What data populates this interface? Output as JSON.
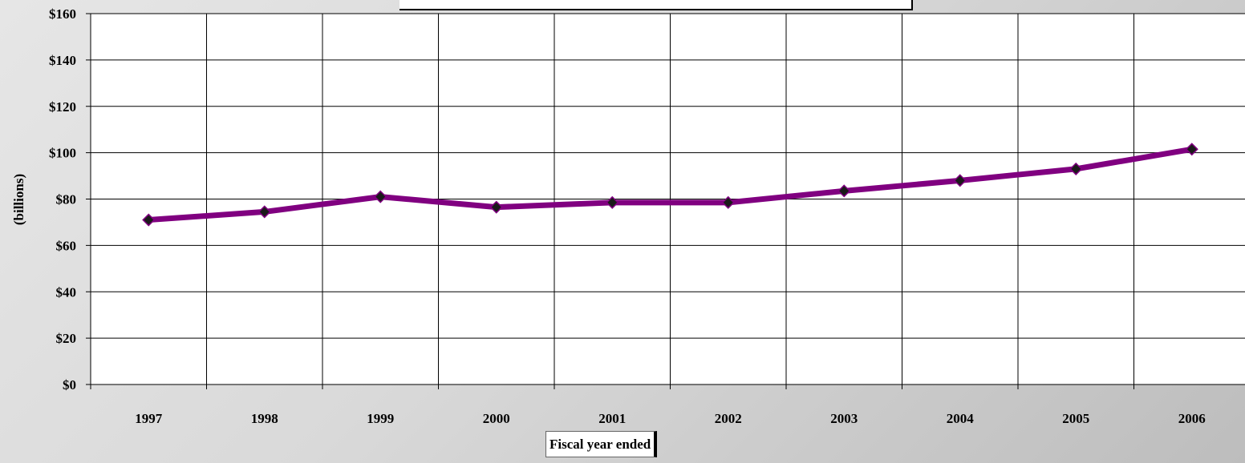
{
  "chart_data": {
    "type": "line",
    "title": "",
    "xlabel": "Fiscal year ended",
    "ylabel": "(billions)",
    "categories": [
      "1997",
      "1998",
      "1999",
      "2000",
      "2001",
      "2002",
      "2003",
      "2004",
      "2005",
      "2006"
    ],
    "series": [
      {
        "values": [
          71,
          74.5,
          81,
          76.5,
          78.5,
          78.5,
          83.5,
          88,
          93,
          101.5
        ]
      }
    ],
    "ylim": [
      0,
      160
    ],
    "ytick_step": 20,
    "ytick_labels": [
      "$0",
      "$20",
      "$40",
      "$60",
      "$80",
      "$100",
      "$120",
      "$140",
      "$160"
    ],
    "grid": true,
    "line_color": "#800080",
    "marker_color": "#1a1a1a",
    "plot_background": "#ffffff"
  }
}
